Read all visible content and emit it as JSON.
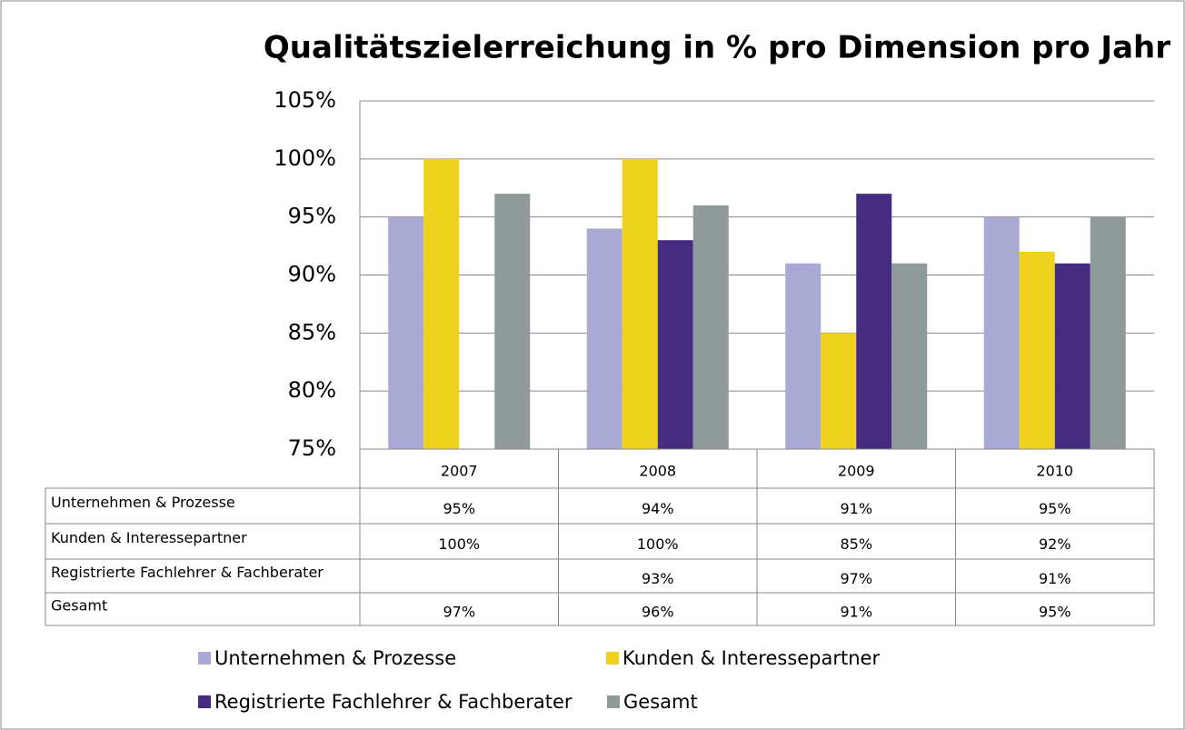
{
  "chart_data": {
    "type": "bar",
    "title": "Qualitätszielerreichung in % pro Dimension pro Jahr",
    "categories": [
      "2007",
      "2008",
      "2009",
      "2010"
    ],
    "series": [
      {
        "name": "Unternehmen & Prozesse",
        "color": "#a9a9d4",
        "values": [
          95,
          94,
          91,
          95
        ],
        "value_labels": [
          "95%",
          "94%",
          "91%",
          "95%"
        ]
      },
      {
        "name": "Kunden & Interessepartner",
        "color": "#eed21e",
        "values": [
          100,
          100,
          85,
          92
        ],
        "value_labels": [
          "100%",
          "100%",
          "85%",
          "92%"
        ]
      },
      {
        "name": "Registrierte Fachlehrer & Fachberater",
        "color": "#452c80",
        "values": [
          null,
          93,
          97,
          91
        ],
        "value_labels": [
          null,
          "93%",
          "97%",
          "91%"
        ]
      },
      {
        "name": "Gesamt",
        "color": "#8f9a9a",
        "values": [
          97,
          96,
          91,
          95
        ],
        "value_labels": [
          "97%",
          "96%",
          "91%",
          "95%"
        ]
      }
    ],
    "ylim": [
      75,
      105
    ],
    "yticks": [
      {
        "value": 75,
        "label": "75%"
      },
      {
        "value": 80,
        "label": "80%"
      },
      {
        "value": 85,
        "label": "85%"
      },
      {
        "value": 90,
        "label": "90%"
      },
      {
        "value": 95,
        "label": "95%"
      },
      {
        "value": 100,
        "label": "100%"
      },
      {
        "value": 105,
        "label": "105%"
      }
    ],
    "grid": true
  }
}
